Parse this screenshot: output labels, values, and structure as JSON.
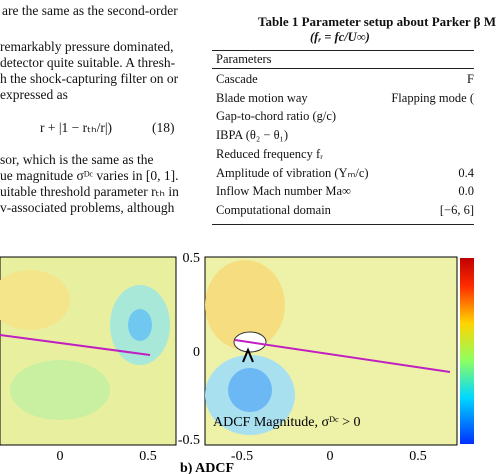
{
  "body_text": {
    "lines": [
      "are the same as the second-order",
      "remarkably pressure dominated,",
      "detector quite suitable. A thresh-",
      "h the shock-capturing filter on or",
      "expressed as",
      "r + |1 − rₜₕ/r|)",
      "(18)",
      "sor, which is the same as the",
      "ue magnitude σᴰᶜ varies in [0, 1].",
      "uitable threshold parameter rₜₕ in",
      "v-associated problems, although"
    ]
  },
  "table": {
    "title": "Table 1    Parameter setup about Parker β M",
    "subtitle": "(fᵣ = fc/U∞)",
    "header": "Parameters",
    "rows": [
      [
        "Cascade",
        "F"
      ],
      [
        "Blade motion way",
        "Flapping mode ("
      ],
      [
        "Gap-to-chord ratio (g/c)",
        ""
      ],
      [
        "IBPA (θ₂ − θ₁)",
        ""
      ],
      [
        "Reduced frequency fᵣ",
        ""
      ],
      [
        "Amplitude of vibration (Yₘ/c)",
        "0.4"
      ],
      [
        "Inflow Mach number Ma∞",
        "0.0"
      ],
      [
        "Computational domain",
        "[−6, 6]"
      ]
    ]
  },
  "figure": {
    "left_xticks": [
      "0",
      "0.5"
    ],
    "right_yticks": [
      "0.5",
      "0",
      "-0.5"
    ],
    "right_xticks": [
      "-0.5",
      "0",
      "0.5"
    ],
    "annotation": "ADCF Magnitude, σᴰᶜ > 0",
    "caption": "b) ADCF"
  }
}
